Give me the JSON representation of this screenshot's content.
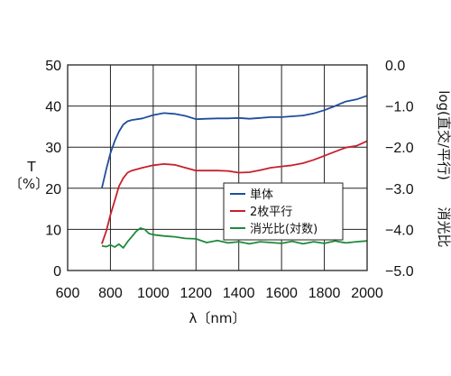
{
  "chart_data": {
    "type": "line",
    "xlabel": "λ〔nm〕",
    "ylabel_left": "T\n〔%〕",
    "ylabel_right": "log(直交/平行)",
    "ylabel_right_extra": "消光比",
    "xlim": [
      600,
      2000
    ],
    "ylim_left": [
      0,
      50
    ],
    "ylim_right": [
      0.0,
      -5.0
    ],
    "x_ticks": [
      600,
      800,
      1000,
      1200,
      1400,
      1600,
      1800,
      2000
    ],
    "x_tick_labels": [
      "600",
      "800",
      "1000",
      "1200",
      "1400",
      "1600",
      "1800",
      "2000"
    ],
    "y_left_ticks": [
      0,
      10,
      20,
      30,
      40,
      50
    ],
    "y_left_tick_labels": [
      "0",
      "10",
      "20",
      "30",
      "40",
      "50"
    ],
    "y_right_ticks": [
      0.0,
      -1.0,
      -2.0,
      -3.0,
      -4.0,
      -5.0
    ],
    "y_right_tick_labels": [
      "0.0",
      "−1.0",
      "−2.0",
      "−3.0",
      "−4.0",
      "−5.0"
    ],
    "grid": true,
    "legend_position": "center-right",
    "series": [
      {
        "name": "単体",
        "axis": "left",
        "color": "#1f4e9a",
        "x": [
          760,
          780,
          800,
          820,
          840,
          860,
          880,
          900,
          950,
          1000,
          1050,
          1100,
          1150,
          1200,
          1250,
          1300,
          1350,
          1400,
          1450,
          1500,
          1550,
          1600,
          1650,
          1700,
          1750,
          1800,
          1850,
          1900,
          1950,
          2000
        ],
        "values": [
          20,
          24.5,
          28.5,
          31.5,
          33.8,
          35.5,
          36.3,
          36.6,
          37.0,
          37.8,
          38.3,
          38.1,
          37.6,
          36.8,
          36.9,
          37.0,
          37.0,
          37.1,
          36.9,
          37.1,
          37.3,
          37.3,
          37.5,
          37.7,
          38.2,
          39.0,
          40.0,
          41.1,
          41.6,
          42.5
        ]
      },
      {
        "name": "2枚平行",
        "axis": "left",
        "color": "#c8202a",
        "x": [
          760,
          780,
          800,
          820,
          840,
          860,
          880,
          900,
          950,
          1000,
          1050,
          1100,
          1150,
          1200,
          1250,
          1300,
          1350,
          1400,
          1450,
          1500,
          1550,
          1600,
          1650,
          1700,
          1750,
          1800,
          1850,
          1900,
          1950,
          2000
        ],
        "values": [
          6.5,
          9.5,
          13.5,
          17.0,
          20.5,
          22.5,
          23.8,
          24.3,
          25.0,
          25.6,
          25.9,
          25.7,
          25.0,
          24.3,
          24.3,
          24.3,
          24.2,
          23.8,
          23.9,
          24.4,
          25.0,
          25.3,
          25.6,
          26.1,
          26.9,
          27.9,
          28.9,
          29.9,
          30.3,
          31.5
        ]
      },
      {
        "name": "消光比(対数)",
        "axis": "right",
        "color": "#1f8a3a",
        "x": [
          760,
          780,
          800,
          820,
          840,
          860,
          880,
          900,
          920,
          940,
          960,
          980,
          1000,
          1050,
          1100,
          1150,
          1200,
          1250,
          1300,
          1350,
          1400,
          1450,
          1500,
          1550,
          1600,
          1650,
          1700,
          1750,
          1800,
          1850,
          1900,
          1950,
          2000
        ],
        "values": [
          -4.4,
          -4.42,
          -4.38,
          -4.43,
          -4.36,
          -4.45,
          -4.3,
          -4.18,
          -4.05,
          -3.97,
          -4.0,
          -4.1,
          -4.13,
          -4.16,
          -4.18,
          -4.22,
          -4.23,
          -4.32,
          -4.27,
          -4.33,
          -4.3,
          -4.35,
          -4.3,
          -4.32,
          -4.34,
          -4.29,
          -4.35,
          -4.3,
          -4.34,
          -4.28,
          -4.33,
          -4.3,
          -4.28
        ]
      }
    ]
  }
}
